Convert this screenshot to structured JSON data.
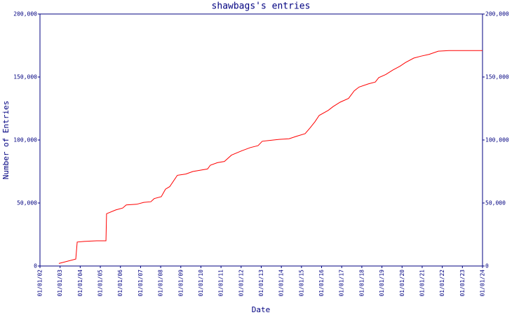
{
  "chart_data": {
    "type": "line",
    "title": "shawbags's entries",
    "x_label": "Date",
    "y_label": "Number of Entries",
    "x": [
      2002.94,
      2003.78,
      2003.85,
      2004.2,
      2004.82,
      2005.28,
      2005.31,
      2005.77,
      2006.11,
      2006.29,
      2006.81,
      2007.16,
      2007.51,
      2007.68,
      2008.03,
      2008.24,
      2008.45,
      2008.83,
      2009.25,
      2009.6,
      2009.95,
      2010.33,
      2010.47,
      2010.82,
      2011.17,
      2011.52,
      2012.04,
      2012.46,
      2012.84,
      2013.05,
      2013.61,
      2013.89,
      2014.38,
      2014.76,
      2015.18,
      2015.42,
      2015.67,
      2015.88,
      2016.33,
      2016.57,
      2016.92,
      2017.34,
      2017.62,
      2017.86,
      2018.32,
      2018.67,
      2018.84,
      2019.19,
      2019.54,
      2019.89,
      2020.17,
      2020.58,
      2020.93,
      2021.35,
      2021.8,
      2022.33,
      2024.0
    ],
    "series": [
      {
        "name": "entries",
        "color": "#ff0000",
        "values": [
          2000,
          5500,
          19000,
          19500,
          20000,
          20000,
          41500,
          44500,
          46000,
          48500,
          49000,
          50500,
          51000,
          53500,
          55000,
          61000,
          63000,
          72000,
          73000,
          75000,
          76000,
          77000,
          80000,
          82000,
          83000,
          88000,
          91500,
          94000,
          95500,
          99000,
          100000,
          100500,
          101000,
          103000,
          105000,
          109500,
          114500,
          119500,
          123500,
          126500,
          130000,
          133000,
          139000,
          142000,
          144500,
          146000,
          149500,
          152000,
          155500,
          158500,
          161500,
          165000,
          166500,
          168000,
          170500,
          171000,
          171000
        ]
      }
    ],
    "xlim": [
      2002,
      2024
    ],
    "xticks": [
      {
        "value": 2002,
        "label": "01/01/02"
      },
      {
        "value": 2003,
        "label": "01/01/03"
      },
      {
        "value": 2004,
        "label": "01/01/04"
      },
      {
        "value": 2005,
        "label": "01/01/05"
      },
      {
        "value": 2006,
        "label": "01/01/06"
      },
      {
        "value": 2007,
        "label": "01/01/07"
      },
      {
        "value": 2008,
        "label": "01/01/08"
      },
      {
        "value": 2009,
        "label": "01/01/09"
      },
      {
        "value": 2010,
        "label": "01/01/10"
      },
      {
        "value": 2011,
        "label": "01/01/11"
      },
      {
        "value": 2012,
        "label": "01/01/12"
      },
      {
        "value": 2013,
        "label": "01/01/13"
      },
      {
        "value": 2014,
        "label": "01/01/14"
      },
      {
        "value": 2015,
        "label": "01/01/15"
      },
      {
        "value": 2016,
        "label": "01/01/16"
      },
      {
        "value": 2017,
        "label": "01/01/17"
      },
      {
        "value": 2018,
        "label": "01/01/18"
      },
      {
        "value": 2019,
        "label": "01/01/19"
      },
      {
        "value": 2020,
        "label": "01/01/20"
      },
      {
        "value": 2021,
        "label": "01/01/21"
      },
      {
        "value": 2022,
        "label": "01/01/22"
      },
      {
        "value": 2023,
        "label": "01/01/23"
      },
      {
        "value": 2024,
        "label": "01/01/24"
      }
    ],
    "ylim": [
      0,
      200000
    ],
    "yticks": [
      0,
      {
        "value": 50000,
        "label": "50,000"
      },
      {
        "value": 100000,
        "label": "100,000"
      },
      {
        "value": 150000,
        "label": "150,000"
      },
      {
        "value": 200000,
        "label": "200,000"
      }
    ]
  }
}
